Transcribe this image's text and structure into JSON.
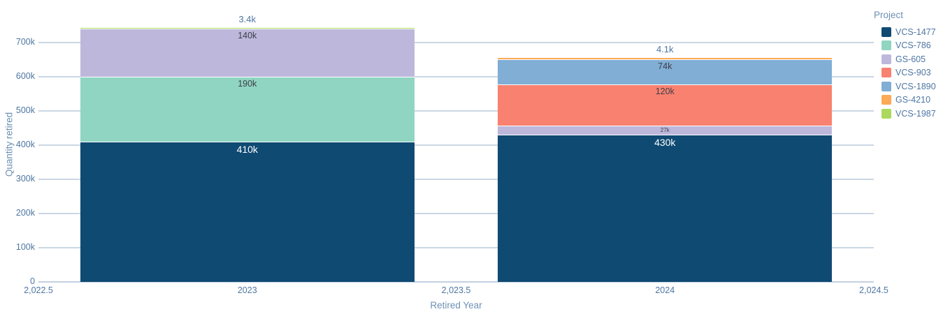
{
  "colors": {
    "background": "#ffffff",
    "gridline": "#cbd7e4",
    "axis_line": "#c3d1e1",
    "tick_text": "#4f76a3",
    "axis_title_text": "#6e90b5",
    "legend_title_text": "#6e90b5",
    "legend_item_text": "#4f76a3",
    "inside_dark_label": "#3e3e49",
    "inside_white_label": "#ffffff",
    "outside_label": "#4f76a3",
    "segment_divider": "#ffffff"
  },
  "chart_data": {
    "type": "bar",
    "stacked": true,
    "orientation": "vertical",
    "title": "",
    "xlabel": "Retired Year",
    "ylabel": "Quantity retired",
    "legend_title": "Project",
    "legend_position": "top-right",
    "grid": "horizontal",
    "xlim": [
      2022.5,
      2024.5
    ],
    "ylim": [
      0,
      800000
    ],
    "bar_width_years": 0.8,
    "x_ticks": [
      {
        "label": "2,022.5",
        "value": 2022.5
      },
      {
        "label": "2023",
        "value": 2023
      },
      {
        "label": "2,023.5",
        "value": 2023.5
      },
      {
        "label": "2024",
        "value": 2024
      },
      {
        "label": "2,024.5",
        "value": 2024.5
      }
    ],
    "y_ticks": [
      {
        "label": "0",
        "value": 0
      },
      {
        "label": "100k",
        "value": 100000
      },
      {
        "label": "200k",
        "value": 200000
      },
      {
        "label": "300k",
        "value": 300000
      },
      {
        "label": "400k",
        "value": 400000
      },
      {
        "label": "500k",
        "value": 500000
      },
      {
        "label": "600k",
        "value": 600000
      },
      {
        "label": "700k",
        "value": 700000
      }
    ],
    "legend_items": [
      "VCS-1477",
      "VCS-786",
      "GS-605",
      "VCS-903",
      "VCS-1890",
      "GS-4210",
      "VCS-1987"
    ],
    "series_colors": {
      "VCS-1477": "#0f4a73",
      "VCS-786": "#8fd5c2",
      "GS-605": "#bdb8db",
      "VCS-903": "#f98170",
      "VCS-1890": "#80aed5",
      "GS-4210": "#fbaa56",
      "VCS-1987": "#abd95e"
    },
    "bars": [
      {
        "x": 2023,
        "x_label": "2023",
        "total": 743400,
        "segments": [
          {
            "series": "VCS-1477",
            "value": 410000,
            "label": "410k",
            "label_style": "inside-white"
          },
          {
            "series": "VCS-786",
            "value": 190000,
            "label": "190k",
            "label_style": "inside-dark"
          },
          {
            "series": "GS-605",
            "value": 140000,
            "label": "140k",
            "label_style": "inside-dark"
          },
          {
            "series": "VCS-1987",
            "value": 3400,
            "label": "3.4k",
            "label_style": "outside"
          }
        ]
      },
      {
        "x": 2024,
        "x_label": "2024",
        "total": 655100,
        "segments": [
          {
            "series": "VCS-1477",
            "value": 430000,
            "label": "430k",
            "label_style": "inside-white"
          },
          {
            "series": "GS-605",
            "value": 27000,
            "label": "27k",
            "label_style": "inside-dark-small"
          },
          {
            "series": "VCS-903",
            "value": 120000,
            "label": "120k",
            "label_style": "inside-dark"
          },
          {
            "series": "VCS-1890",
            "value": 74000,
            "label": "74k",
            "label_style": "inside-dark"
          },
          {
            "series": "GS-4210",
            "value": 4100,
            "label": "4.1k",
            "label_style": "outside"
          }
        ]
      }
    ]
  }
}
